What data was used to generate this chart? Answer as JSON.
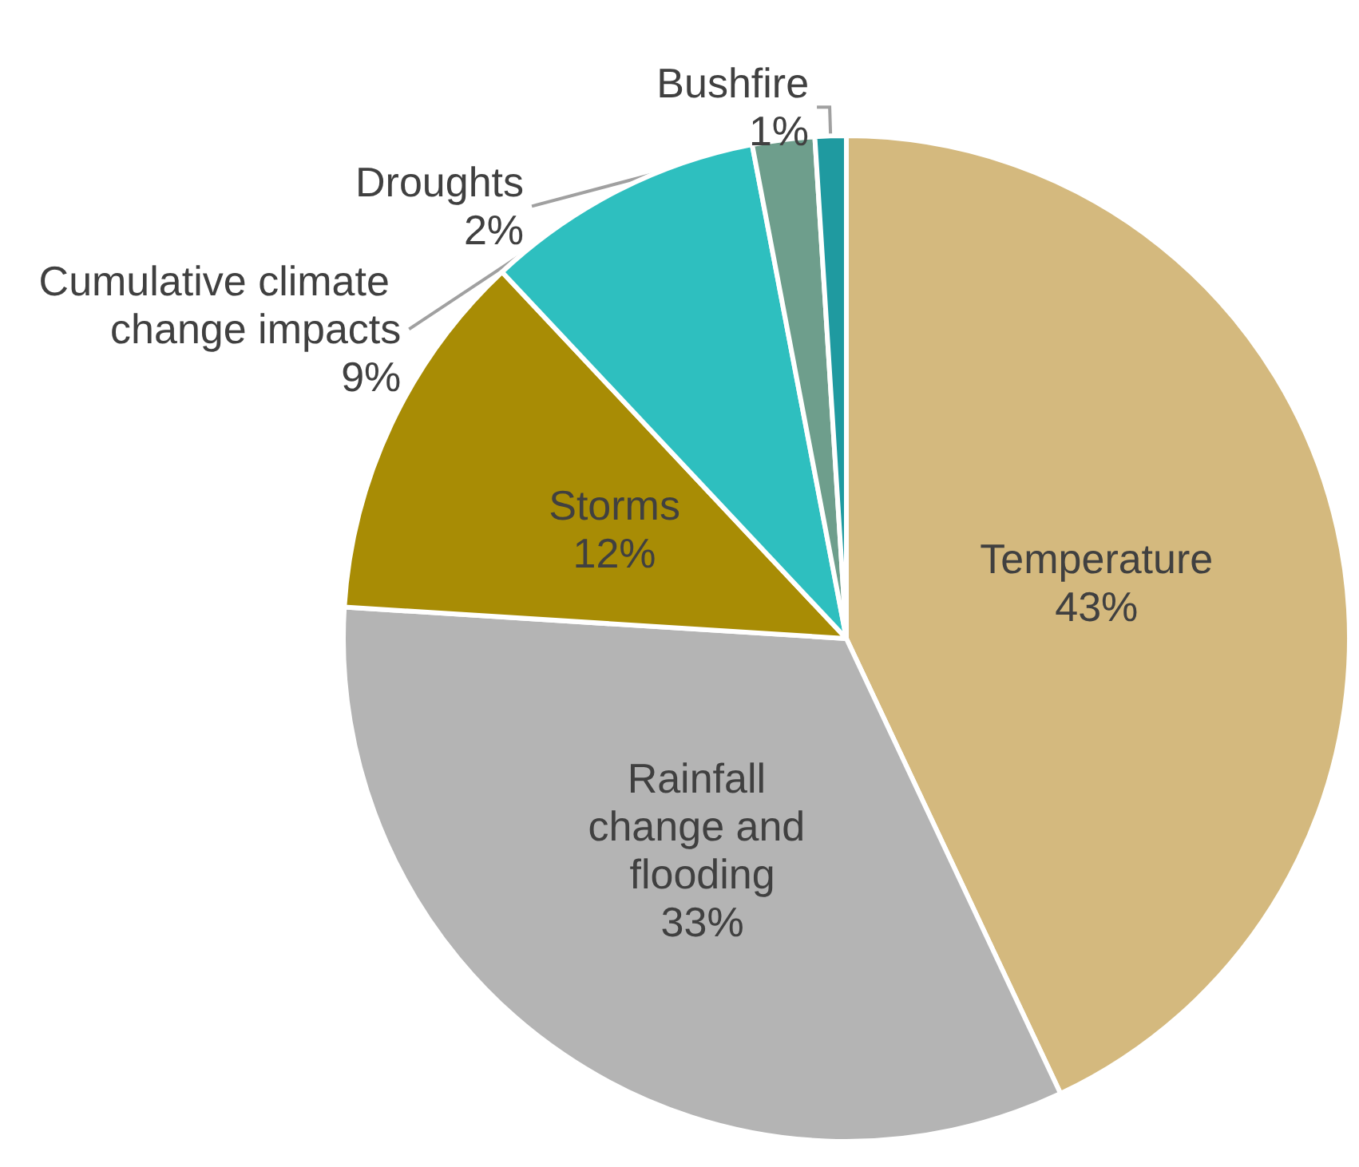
{
  "chart_data": {
    "type": "pie",
    "categories": [
      "Temperature",
      "Rainfall change and flooding",
      "Storms",
      "Cumulative climate change impacts",
      "Droughts",
      "Bushfire"
    ],
    "values": [
      43,
      33,
      12,
      9,
      2,
      1
    ],
    "value_labels": [
      "43%",
      "33%",
      "12%",
      "9%",
      "2%",
      "1%"
    ],
    "colors": [
      "#d4b97e",
      "#b4b4b4",
      "#a88c05",
      "#2ebfbf",
      "#6e9e8c",
      "#1f9aa0"
    ],
    "legend": false
  }
}
